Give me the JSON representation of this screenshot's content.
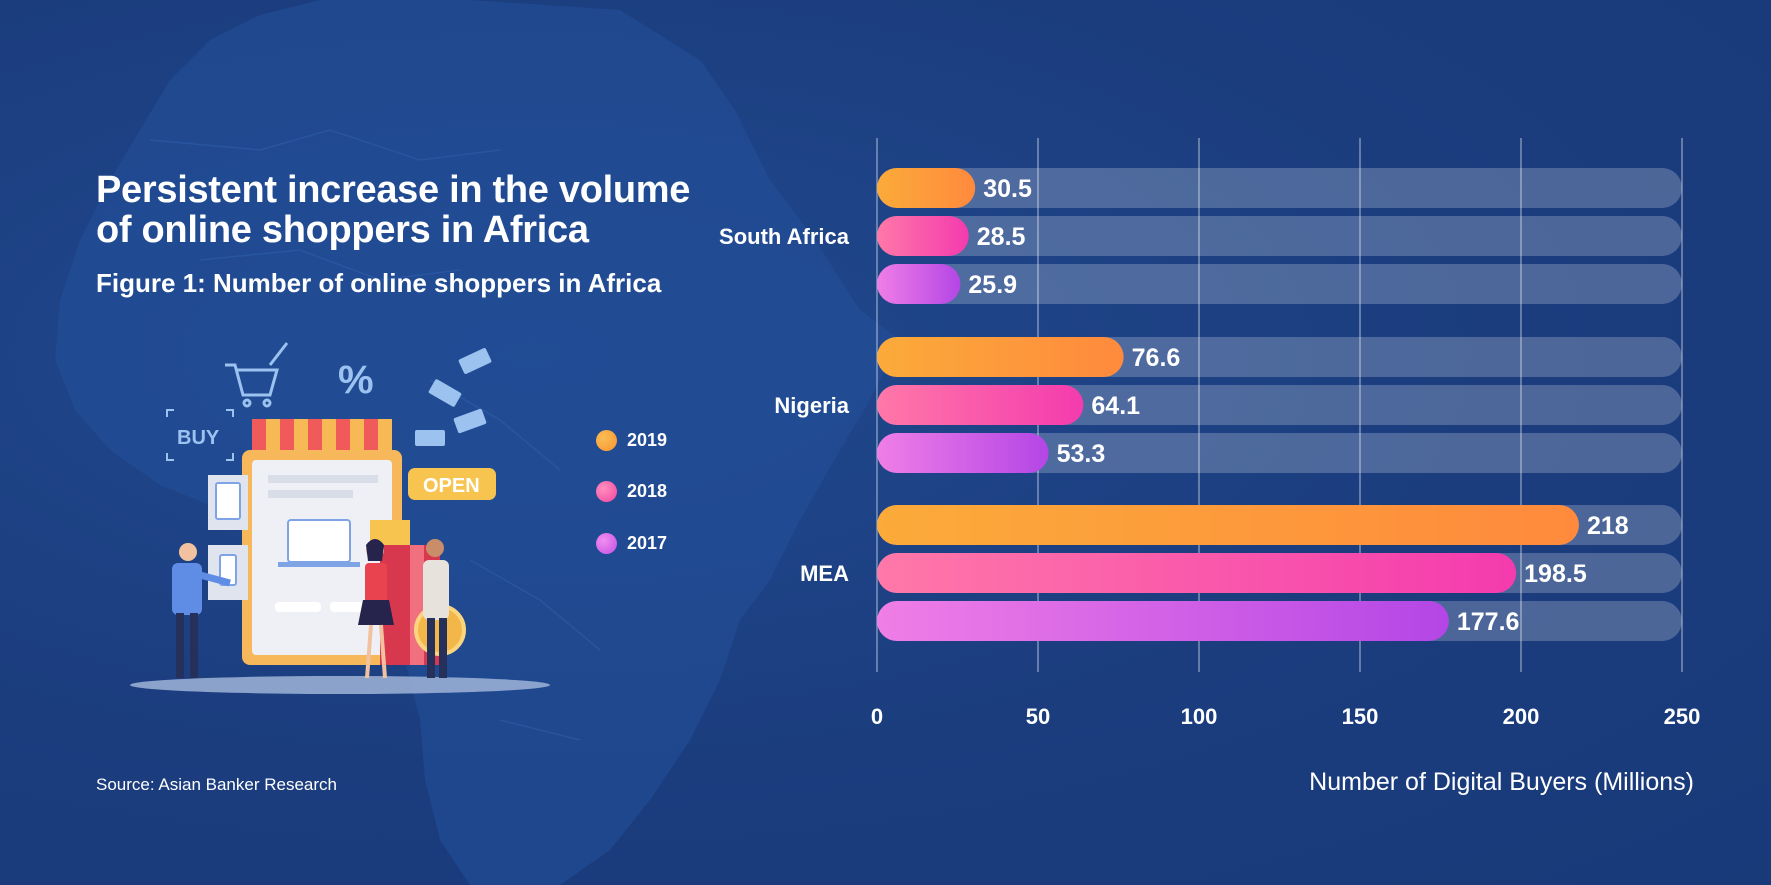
{
  "header": {
    "title": "Persistent increase in the volume of online shoppers in Africa",
    "subtitle": "Figure 1: Number of online shoppers in Africa"
  },
  "footer": {
    "source": "Source: Asian Banker Research"
  },
  "illustration": {
    "buy_label": "BUY",
    "open_label": "OPEN",
    "percent_label": "%"
  },
  "colors": {
    "background": "#1b3d7e",
    "track": "#4a67a0",
    "2019": [
      "#fbab3a",
      "#ff8a3d"
    ],
    "2018": [
      "#ff78a8",
      "#f43bae"
    ],
    "2017": [
      "#f07ee6",
      "#b446e6"
    ]
  },
  "chart_data": {
    "type": "bar",
    "orientation": "horizontal",
    "categories": [
      "South Africa",
      "Nigeria",
      "MEA"
    ],
    "series": [
      {
        "name": "2019",
        "values": [
          30.5,
          76.6,
          218
        ]
      },
      {
        "name": "2018",
        "values": [
          28.5,
          64.1,
          198.5
        ]
      },
      {
        "name": "2017",
        "values": [
          25.9,
          53.3,
          177.6
        ]
      }
    ],
    "xlabel": "Number of Digital Buyers (Millions)",
    "ylabel": "",
    "xlim": [
      0,
      250
    ],
    "xticks": [
      0,
      50,
      100,
      150,
      200,
      250
    ],
    "grid": true,
    "legend_position": "left"
  }
}
